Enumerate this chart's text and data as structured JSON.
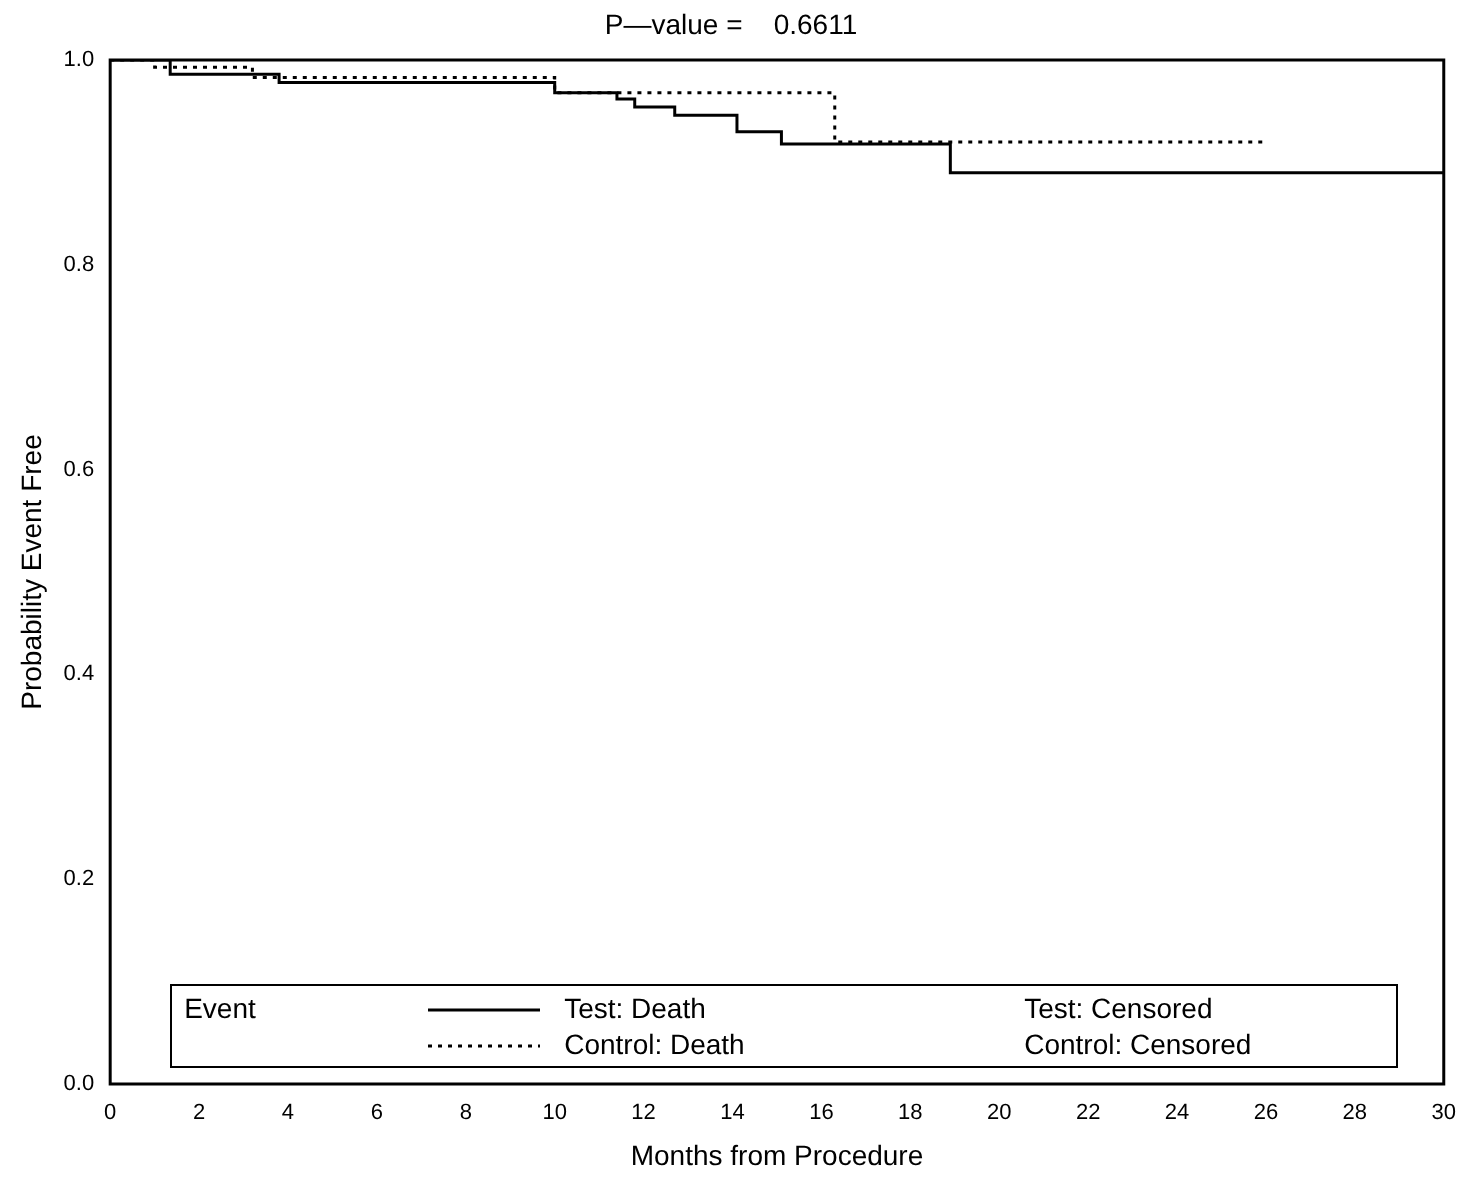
{
  "chart_data": {
    "type": "step",
    "title": "P—value =    0.6611",
    "xlabel": "Months from Procedure",
    "ylabel": "Probability Event Free",
    "legend_title": "Event",
    "legend": "bottom",
    "annotations": [
      "Test: Censored",
      "Control: Censored"
    ],
    "series": [
      {
        "name": "Test: Death",
        "color": "#000000",
        "line_style": "solid",
        "x": [
          0,
          1.35,
          3.8,
          10.0,
          11.4,
          11.8,
          12.7,
          14.1,
          15.1,
          18.9,
          30
        ],
        "values": [
          1,
          0.986,
          0.978,
          0.968,
          0.962,
          0.954,
          0.946,
          0.93,
          0.918,
          0.89,
          0.89
        ]
      },
      {
        "name": "Control: Death",
        "color": "#000000",
        "line_style": "dotted",
        "x": [
          0,
          1.0,
          3.2,
          10.0,
          16.3,
          26.0
        ],
        "values": [
          1,
          0.993,
          0.983,
          0.968,
          0.92,
          0.92
        ]
      }
    ],
    "xlim": [
      0,
      30
    ],
    "xticks": [
      0,
      2,
      4,
      6,
      8,
      10,
      12,
      14,
      16,
      18,
      20,
      22,
      24,
      26,
      28,
      30
    ],
    "ylim": [
      0,
      1
    ],
    "yticks": [
      {
        "value": 0,
        "label": "0.0"
      },
      {
        "value": 0.2,
        "label": "0.2"
      },
      {
        "value": 0.4,
        "label": "0.4"
      },
      {
        "value": 0.6,
        "label": "0.6"
      },
      {
        "value": 0.8,
        "label": "0.8"
      },
      {
        "value": 1,
        "label": "1.0"
      }
    ],
    "grid": false
  }
}
